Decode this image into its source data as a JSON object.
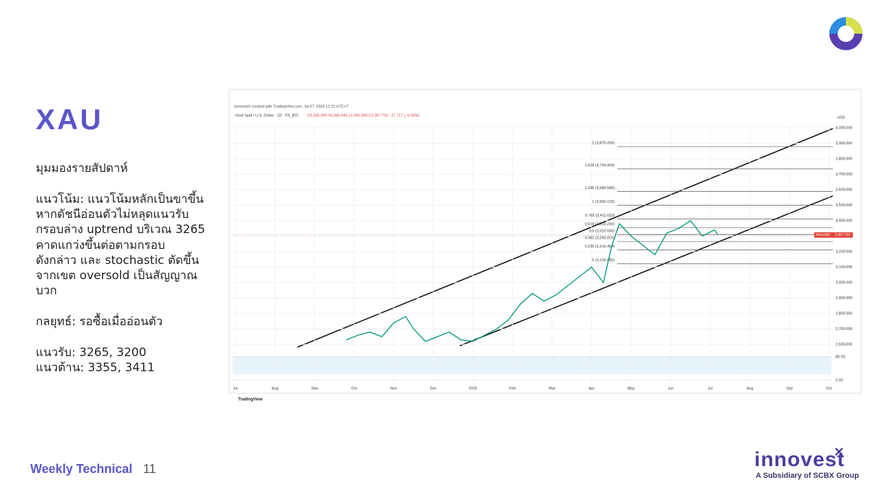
{
  "slide": {
    "title": "XAU",
    "heading": "มุมมองรายสัปดาห์",
    "trend_lines": [
      "แนวโน้ม: แนวโน้มหลักเป็นขาขึ้น",
      "หากดัชนีอ่อนตัวไม่หลุดแนวรับ",
      "กรอบล่าง uptrend บริเวณ 3265",
      "คาดแกว่งขึ้นต่อตามกรอบ",
      "ดังกล่าว และ stochastic ตัดขึ้น",
      "จากเขต oversold เป็นสัญญาณ",
      "บวก"
    ],
    "strategy": "กลยุทธ์: รอซื้อเมื่ออ่อนตัว",
    "support": "แนวรับ: 3265, 3200",
    "resistance": "แนวต้าน: 3355, 3411",
    "footer": {
      "title": "Weekly Technical",
      "page": "11"
    },
    "logo": {
      "brand": "innovest",
      "tagline": "A Subsidiary of SCBX Group"
    }
  },
  "chart_data": {
    "type": "line",
    "credit": "innovestX created with TradingView.com, Jul 07, 2025 12:22 UTC+7",
    "symbol_line": "Gold Spot / U.S. Dollar · 1D · FX_IDC",
    "ohlc": "O3,336.900 H3,345.040 L3,305.300 C3,307.703 −17.717 (−0.53%)",
    "currency": "USD",
    "brand": "TradingView",
    "color": "#089981",
    "x": [
      2.8,
      3.1,
      3.4,
      3.7,
      4.0,
      4.3,
      4.5,
      4.8,
      5.1,
      5.4,
      5.7,
      6.0,
      6.3,
      6.6,
      6.9,
      7.2,
      7.5,
      7.8,
      8.1,
      8.4,
      8.7,
      9.0,
      9.3,
      9.5,
      9.7,
      10.0,
      10.3,
      10.6,
      10.9,
      11.2,
      11.5,
      11.8,
      12.1,
      12.2
    ],
    "values": [
      2630,
      2660,
      2680,
      2650,
      2740,
      2780,
      2700,
      2620,
      2650,
      2680,
      2630,
      2620,
      2660,
      2700,
      2760,
      2860,
      2930,
      2880,
      2920,
      2980,
      3040,
      3100,
      3000,
      3230,
      3380,
      3300,
      3240,
      3180,
      3320,
      3350,
      3400,
      3300,
      3340,
      3308
    ],
    "xlim": [
      -0.07,
      15.06
    ],
    "xticks": [
      {
        "value": 0,
        "label": "Jul"
      },
      {
        "value": 1,
        "label": "Aug"
      },
      {
        "value": 2,
        "label": "Sep"
      },
      {
        "value": 3,
        "label": "Oct"
      },
      {
        "value": 4,
        "label": "Nov"
      },
      {
        "value": 5,
        "label": "Dec"
      },
      {
        "value": 6,
        "label": "2025"
      },
      {
        "value": 7,
        "label": "Feb"
      },
      {
        "value": 8,
        "label": "Mar"
      },
      {
        "value": 9,
        "label": "Apr"
      },
      {
        "value": 10,
        "label": "May"
      },
      {
        "value": 11,
        "label": "Jun"
      },
      {
        "value": 12,
        "label": "Jul"
      },
      {
        "value": 13,
        "label": "Aug"
      },
      {
        "value": 14,
        "label": "Sep"
      },
      {
        "value": 15,
        "label": "Oct"
      }
    ],
    "ylim": [
      2560,
      4020
    ],
    "yticks": [
      {
        "value": 4000,
        "label": "4,000.000"
      },
      {
        "value": 3900,
        "label": "3,900.000"
      },
      {
        "value": 3800,
        "label": "3,800.000"
      },
      {
        "value": 3700,
        "label": "3,700.000"
      },
      {
        "value": 3600,
        "label": "3,600.000"
      },
      {
        "value": 3500,
        "label": "3,500.000"
      },
      {
        "value": 3400,
        "label": "3,400.000"
      },
      {
        "value": 3300,
        "label": "3,300.000"
      },
      {
        "value": 3200,
        "label": "3,200.000"
      },
      {
        "value": 3100,
        "label": "3,100.000"
      },
      {
        "value": 3000,
        "label": "3,000.000"
      },
      {
        "value": 2900,
        "label": "2,900.000"
      },
      {
        "value": 2800,
        "label": "2,800.000"
      },
      {
        "value": 2700,
        "label": "2,700.000"
      },
      {
        "value": 2600,
        "label": "2,600.000"
      }
    ],
    "grid": true,
    "fib_levels": [
      {
        "value": 3879.255,
        "label": "2 (3,879.255)"
      },
      {
        "value": 3734.425,
        "label": "1.618 (3,734.425)"
      },
      {
        "value": 3589.596,
        "label": "1.236 (3,589.596)"
      },
      {
        "value": 3500.12,
        "label": "1 (3,500.120)"
      },
      {
        "value": 3411.023,
        "label": "0.765 (3,411.023)"
      },
      {
        "value": 3355.24,
        "label": "0.618 (3,355.240)"
      },
      {
        "value": 3310.556,
        "label": "0.5 (3,310.556)"
      },
      {
        "value": 3265.815,
        "label": "0.382 (3,265.815)"
      },
      {
        "value": 3210.464,
        "label": "0.236 (3,210.464)"
      },
      {
        "value": 3120.985,
        "label": "0 (3,120.985)"
      }
    ],
    "price_tag": {
      "symbol": "XAUUSD",
      "value": 3307.703,
      "label": "3,307.703"
    },
    "stochastic": {
      "ylim": [
        0,
        100
      ],
      "yticks": [
        {
          "value": 80,
          "label": "80.00"
        },
        {
          "value": 0,
          "label": "0.00"
        }
      ]
    }
  }
}
